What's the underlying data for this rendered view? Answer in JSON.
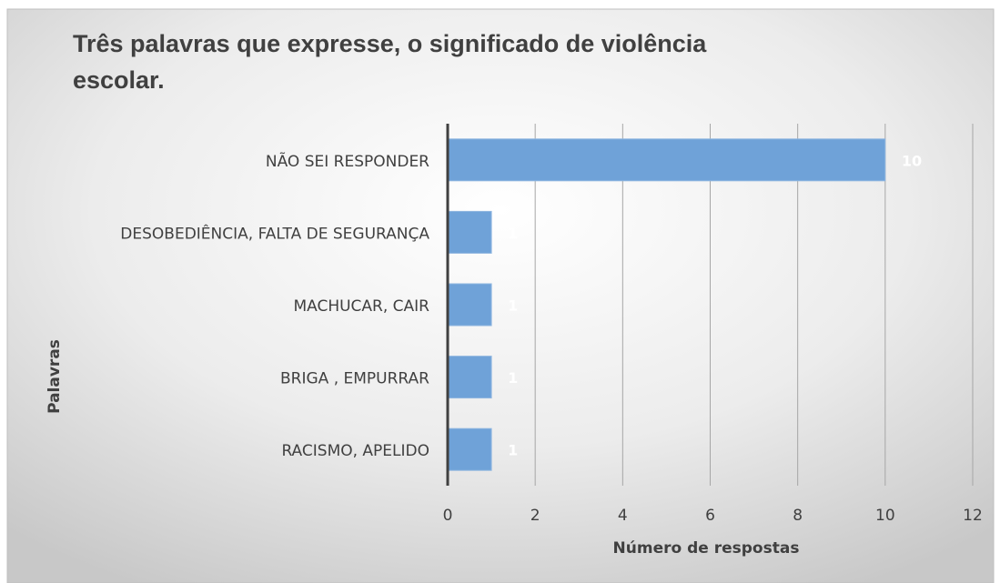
{
  "chart_data": {
    "type": "barh",
    "title": "Três palavras que expresse, o significado de violência escolar.",
    "title_lines": [
      "Três palavras que expresse, o significado de violência",
      "escolar."
    ],
    "x_label": "Número de respostas",
    "y_label": "Palavras",
    "categories": [
      "NÃO SEI RESPONDER",
      "DESOBEDIÊNCIA, FALTA DE SEGURANÇA",
      "MACHUCAR, CAIR",
      "BRIGA , EMPURRAR",
      "RACISMO, APELIDO"
    ],
    "values": [
      10,
      1,
      1,
      1,
      1
    ],
    "color": "#6fa2d8",
    "xlim": [
      0,
      12
    ],
    "xticks": [
      0,
      2,
      4,
      6,
      8,
      10,
      12
    ],
    "grid": true
  }
}
